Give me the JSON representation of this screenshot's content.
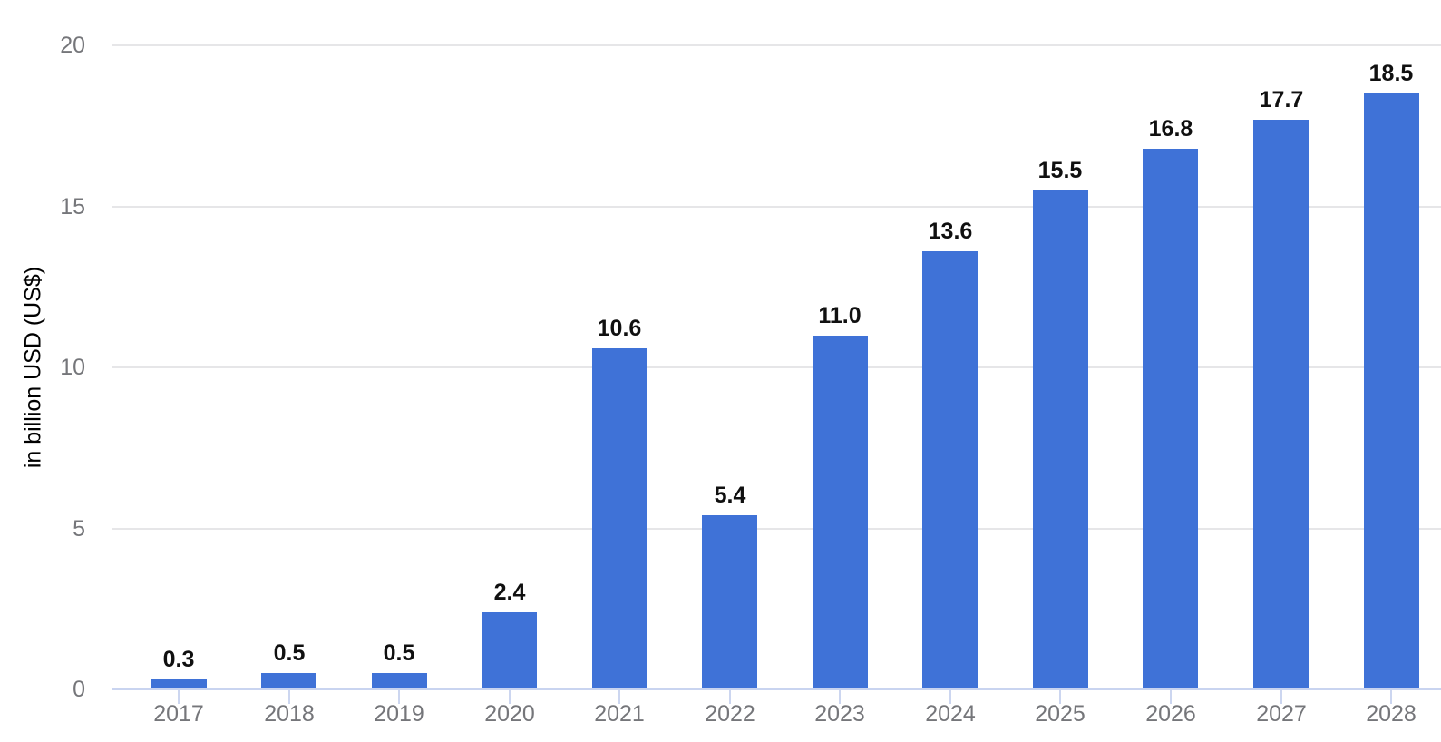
{
  "chart_data": {
    "type": "bar",
    "title": "",
    "xlabel": "",
    "ylabel": "in billion USD (US$)",
    "categories": [
      "2017",
      "2018",
      "2019",
      "2020",
      "2021",
      "2022",
      "2023",
      "2024",
      "2025",
      "2026",
      "2027",
      "2028"
    ],
    "values": [
      0.3,
      0.5,
      0.5,
      2.4,
      10.6,
      5.4,
      11.0,
      13.6,
      15.5,
      16.8,
      17.7,
      18.5
    ],
    "value_labels": [
      "0.3",
      "0.5",
      "0.5",
      "2.4",
      "10.6",
      "5.4",
      "11.0",
      "13.6",
      "15.5",
      "16.8",
      "17.7",
      "18.5"
    ],
    "ylim": [
      0,
      20
    ],
    "yticks": [
      0,
      5,
      10,
      15,
      20
    ],
    "grid": "horizontal-only",
    "legend": "none",
    "colors": {
      "bar": "#3F72D7",
      "grid_line": "#e6e6e8",
      "axis_line": "#c9d4f0",
      "tick_mark": "#ccd6f0",
      "tick_label": "#75767a",
      "value_label": "#101010",
      "background": "#ffffff"
    }
  }
}
